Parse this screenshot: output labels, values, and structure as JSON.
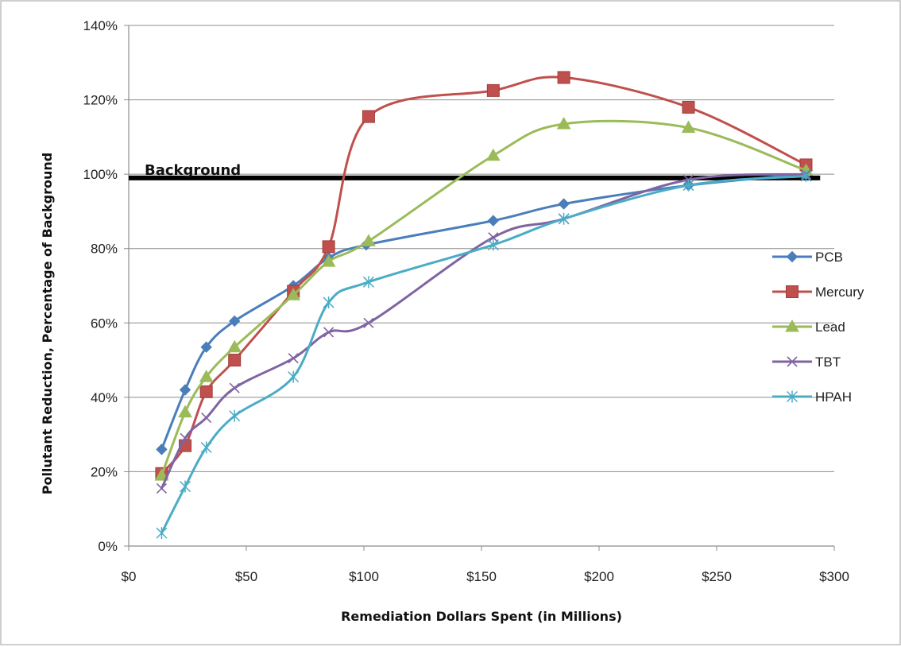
{
  "chart_data": {
    "type": "line",
    "title": "",
    "xlabel": "Remediation Dollars Spent (in Millions)",
    "ylabel": "Pollutant Reduction, Percentage of Background",
    "xlim": [
      0,
      300
    ],
    "ylim": [
      0,
      140
    ],
    "x_ticks": [
      0,
      50,
      100,
      150,
      200,
      250,
      300
    ],
    "x_tick_labels": [
      "$0",
      "$50",
      "$100",
      "$150",
      "$200",
      "$250",
      "$300"
    ],
    "y_ticks": [
      0,
      20,
      40,
      60,
      80,
      100,
      120,
      140
    ],
    "y_tick_labels": [
      "0%",
      "20%",
      "40%",
      "60%",
      "80%",
      "100%",
      "120%",
      "140%"
    ],
    "grid": "horizontal",
    "legend_position": "right",
    "reference_line": {
      "label": "Background",
      "y": 99,
      "color": "#000000"
    },
    "series": [
      {
        "name": "PCB",
        "color": "#4a7ebb",
        "marker": "diamond",
        "x": [
          14,
          24,
          33,
          45,
          70,
          85,
          101,
          155,
          185,
          238,
          288
        ],
        "y": [
          26,
          42,
          53.5,
          60.5,
          70,
          77.5,
          81,
          87.5,
          92,
          97,
          100
        ]
      },
      {
        "name": "Mercury",
        "color": "#c0504d",
        "marker": "square",
        "x": [
          14,
          24,
          33,
          45,
          70,
          85,
          102,
          155,
          185,
          238,
          288
        ],
        "y": [
          19.5,
          27,
          41.5,
          50,
          68.5,
          80.5,
          115.5,
          122.5,
          126,
          118,
          102.5
        ]
      },
      {
        "name": "Lead",
        "color": "#9bbb59",
        "marker": "triangle",
        "x": [
          14,
          24,
          33,
          45,
          70,
          85,
          102,
          155,
          185,
          238,
          288
        ],
        "y": [
          19,
          36,
          45.5,
          53.5,
          67.5,
          76.5,
          82,
          105,
          113.5,
          112.5,
          101
        ]
      },
      {
        "name": "TBT",
        "color": "#8064a2",
        "marker": "x",
        "x": [
          14,
          24,
          33,
          45,
          70,
          85,
          102,
          155,
          185,
          238,
          288
        ],
        "y": [
          15.5,
          29,
          34.5,
          42.5,
          50.5,
          57.5,
          60,
          83,
          88,
          98.5,
          100
        ]
      },
      {
        "name": "HPAH",
        "color": "#4bacc6",
        "marker": "star",
        "x": [
          14,
          24,
          33,
          45,
          70,
          85,
          102,
          155,
          185,
          238,
          288
        ],
        "y": [
          3.5,
          16,
          26.5,
          35,
          45.5,
          65.5,
          71,
          81,
          88,
          97,
          99.5
        ]
      }
    ]
  }
}
